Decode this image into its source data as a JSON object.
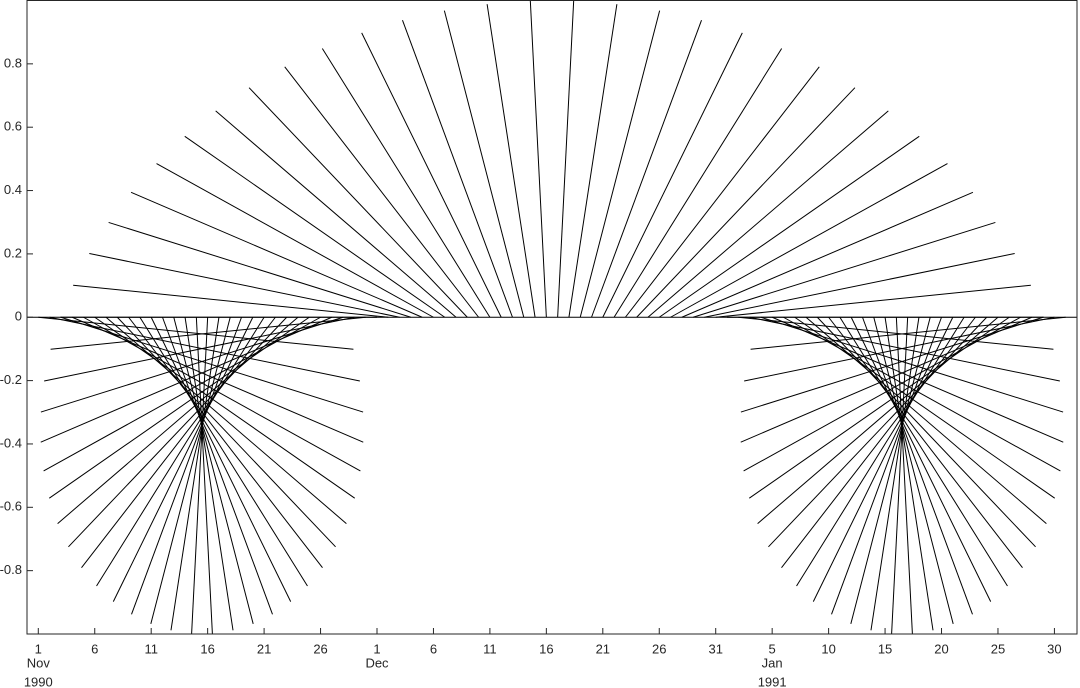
{
  "chart_data": {
    "type": "feather",
    "color": "#000000",
    "x": [
      "1990-11-01",
      "1990-11-02",
      "1990-11-03",
      "1990-11-04",
      "1990-11-05",
      "1990-11-06",
      "1990-11-07",
      "1990-11-08",
      "1990-11-09",
      "1990-11-10",
      "1990-11-11",
      "1990-11-12",
      "1990-11-13",
      "1990-11-14",
      "1990-11-15",
      "1990-11-16",
      "1990-11-17",
      "1990-11-18",
      "1990-11-19",
      "1990-11-20",
      "1990-11-21",
      "1990-11-22",
      "1990-11-23",
      "1990-11-24",
      "1990-11-25",
      "1990-11-26",
      "1990-11-27",
      "1990-11-28",
      "1990-11-29",
      "1990-11-30",
      "1990-12-01",
      "1990-12-02",
      "1990-12-03",
      "1990-12-04",
      "1990-12-05",
      "1990-12-06",
      "1990-12-07",
      "1990-12-08",
      "1990-12-09",
      "1990-12-10",
      "1990-12-11",
      "1990-12-12",
      "1990-12-13",
      "1990-12-14",
      "1990-12-15",
      "1990-12-16",
      "1990-12-17",
      "1990-12-18",
      "1990-12-19",
      "1990-12-20",
      "1990-12-21",
      "1990-12-22",
      "1990-12-23",
      "1990-12-24",
      "1990-12-25",
      "1990-12-26",
      "1990-12-27",
      "1990-12-28",
      "1990-12-29",
      "1990-12-30",
      "1990-12-31",
      "1991-01-01",
      "1991-01-02",
      "1991-01-03",
      "1991-01-04",
      "1991-01-05",
      "1991-01-06",
      "1991-01-07",
      "1991-01-08",
      "1991-01-09",
      "1991-01-10",
      "1991-01-11",
      "1991-01-12",
      "1991-01-13",
      "1991-01-14",
      "1991-01-15",
      "1991-01-16",
      "1991-01-17",
      "1991-01-18",
      "1991-01-19",
      "1991-01-20",
      "1991-01-21",
      "1991-01-22",
      "1991-01-23",
      "1991-01-24",
      "1991-01-25",
      "1991-01-26",
      "1991-01-27",
      "1991-01-28",
      "1991-01-29",
      "1991-01-30",
      "1991-01-31"
    ],
    "u": [
      0.9949,
      0.9795,
      0.9542,
      0.919,
      0.8743,
      0.8208,
      0.7588,
      0.689,
      0.6121,
      0.529,
      0.4404,
      0.3473,
      0.2507,
      0.1514,
      0.0506,
      -0.0506,
      -0.1514,
      -0.2507,
      -0.3473,
      -0.4404,
      -0.529,
      -0.6121,
      -0.689,
      -0.7588,
      -0.8208,
      -0.8743,
      -0.919,
      -0.9542,
      -0.9795,
      -0.9949,
      -1,
      -0.9949,
      -0.9795,
      -0.9542,
      -0.919,
      -0.8743,
      -0.8208,
      -0.7588,
      -0.689,
      -0.6121,
      -0.529,
      -0.4404,
      -0.3473,
      -0.2507,
      -0.1514,
      -0.0506,
      0.0506,
      0.1514,
      0.2507,
      0.3473,
      0.4404,
      0.529,
      0.6121,
      0.689,
      0.7588,
      0.8208,
      0.8743,
      0.919,
      0.9542,
      0.9795,
      0.9949,
      1,
      0.9949,
      0.9795,
      0.9542,
      0.919,
      0.8743,
      0.8208,
      0.7588,
      0.689,
      0.6121,
      0.529,
      0.4404,
      0.3473,
      0.2507,
      0.1514,
      0.0506,
      -0.0506,
      -0.1514,
      -0.2507,
      -0.3473,
      -0.4404,
      -0.529,
      -0.6121,
      -0.689,
      -0.7588,
      -0.8208,
      -0.8743,
      -0.919,
      -0.9542,
      -0.9795,
      -0.9949
    ],
    "v": [
      -0.1012,
      -0.2013,
      -0.2993,
      -0.3944,
      -0.4853,
      -0.5713,
      -0.6514,
      -0.7248,
      -0.7908,
      -0.8486,
      -0.8978,
      -0.9378,
      -0.9681,
      -0.9885,
      -0.9987,
      -0.9987,
      -0.9885,
      -0.9681,
      -0.9378,
      -0.8978,
      -0.8486,
      -0.7908,
      -0.7248,
      -0.6514,
      -0.5713,
      -0.4853,
      -0.3944,
      -0.2993,
      -0.2013,
      -0.1012,
      0,
      0.1012,
      0.2013,
      0.2993,
      0.3944,
      0.4853,
      0.5713,
      0.6514,
      0.7248,
      0.7908,
      0.8486,
      0.8978,
      0.9378,
      0.9681,
      0.9885,
      0.9987,
      0.9987,
      0.9885,
      0.9681,
      0.9378,
      0.8978,
      0.8486,
      0.7908,
      0.7248,
      0.6514,
      0.5713,
      0.4853,
      0.3944,
      0.2993,
      0.2013,
      0.1012,
      0,
      -0.1012,
      -0.2013,
      -0.2993,
      -0.3944,
      -0.4853,
      -0.5713,
      -0.6514,
      -0.7248,
      -0.7908,
      -0.8486,
      -0.8978,
      -0.9378,
      -0.9681,
      -0.9885,
      -0.9987,
      -0.9987,
      -0.9885,
      -0.9681,
      -0.9378,
      -0.8978,
      -0.8486,
      -0.7908,
      -0.7248,
      -0.6514,
      -0.5713,
      -0.4853,
      -0.3944,
      -0.2993,
      -0.2013,
      -0.1012
    ],
    "xlim": [
      "1990-10-31",
      "1991-02-01"
    ],
    "ylim": [
      -1,
      1
    ],
    "yticks": [
      -0.8,
      -0.6,
      -0.4,
      -0.2,
      0,
      0.2,
      0.4,
      0.6,
      0.8
    ],
    "xticks": [
      {
        "value": "1990-11-01",
        "label": "1"
      },
      {
        "value": "1990-11-06",
        "label": "6"
      },
      {
        "value": "1990-11-11",
        "label": "11"
      },
      {
        "value": "1990-11-16",
        "label": "16"
      },
      {
        "value": "1990-11-21",
        "label": "21"
      },
      {
        "value": "1990-11-26",
        "label": "26"
      },
      {
        "value": "1990-12-01",
        "label": "1"
      },
      {
        "value": "1990-12-06",
        "label": "6"
      },
      {
        "value": "1990-12-11",
        "label": "11"
      },
      {
        "value": "1990-12-16",
        "label": "16"
      },
      {
        "value": "1990-12-21",
        "label": "21"
      },
      {
        "value": "1990-12-26",
        "label": "26"
      },
      {
        "value": "1990-12-31",
        "label": "31"
      },
      {
        "value": "1991-01-05",
        "label": "5"
      },
      {
        "value": "1991-01-10",
        "label": "10"
      },
      {
        "value": "1991-01-15",
        "label": "15"
      },
      {
        "value": "1991-01-20",
        "label": "20"
      },
      {
        "value": "1991-01-25",
        "label": "25"
      },
      {
        "value": "1991-01-30",
        "label": "30"
      }
    ],
    "xtick_months": [
      {
        "value": "1990-11-01",
        "label": "Nov"
      },
      {
        "value": "1990-12-01",
        "label": "Dec"
      },
      {
        "value": "1991-01-05",
        "label": "Jan"
      }
    ],
    "xtick_years": [
      {
        "value": "1990-11-01",
        "label": "1990"
      },
      {
        "value": "1991-01-05",
        "label": "1991"
      }
    ]
  }
}
